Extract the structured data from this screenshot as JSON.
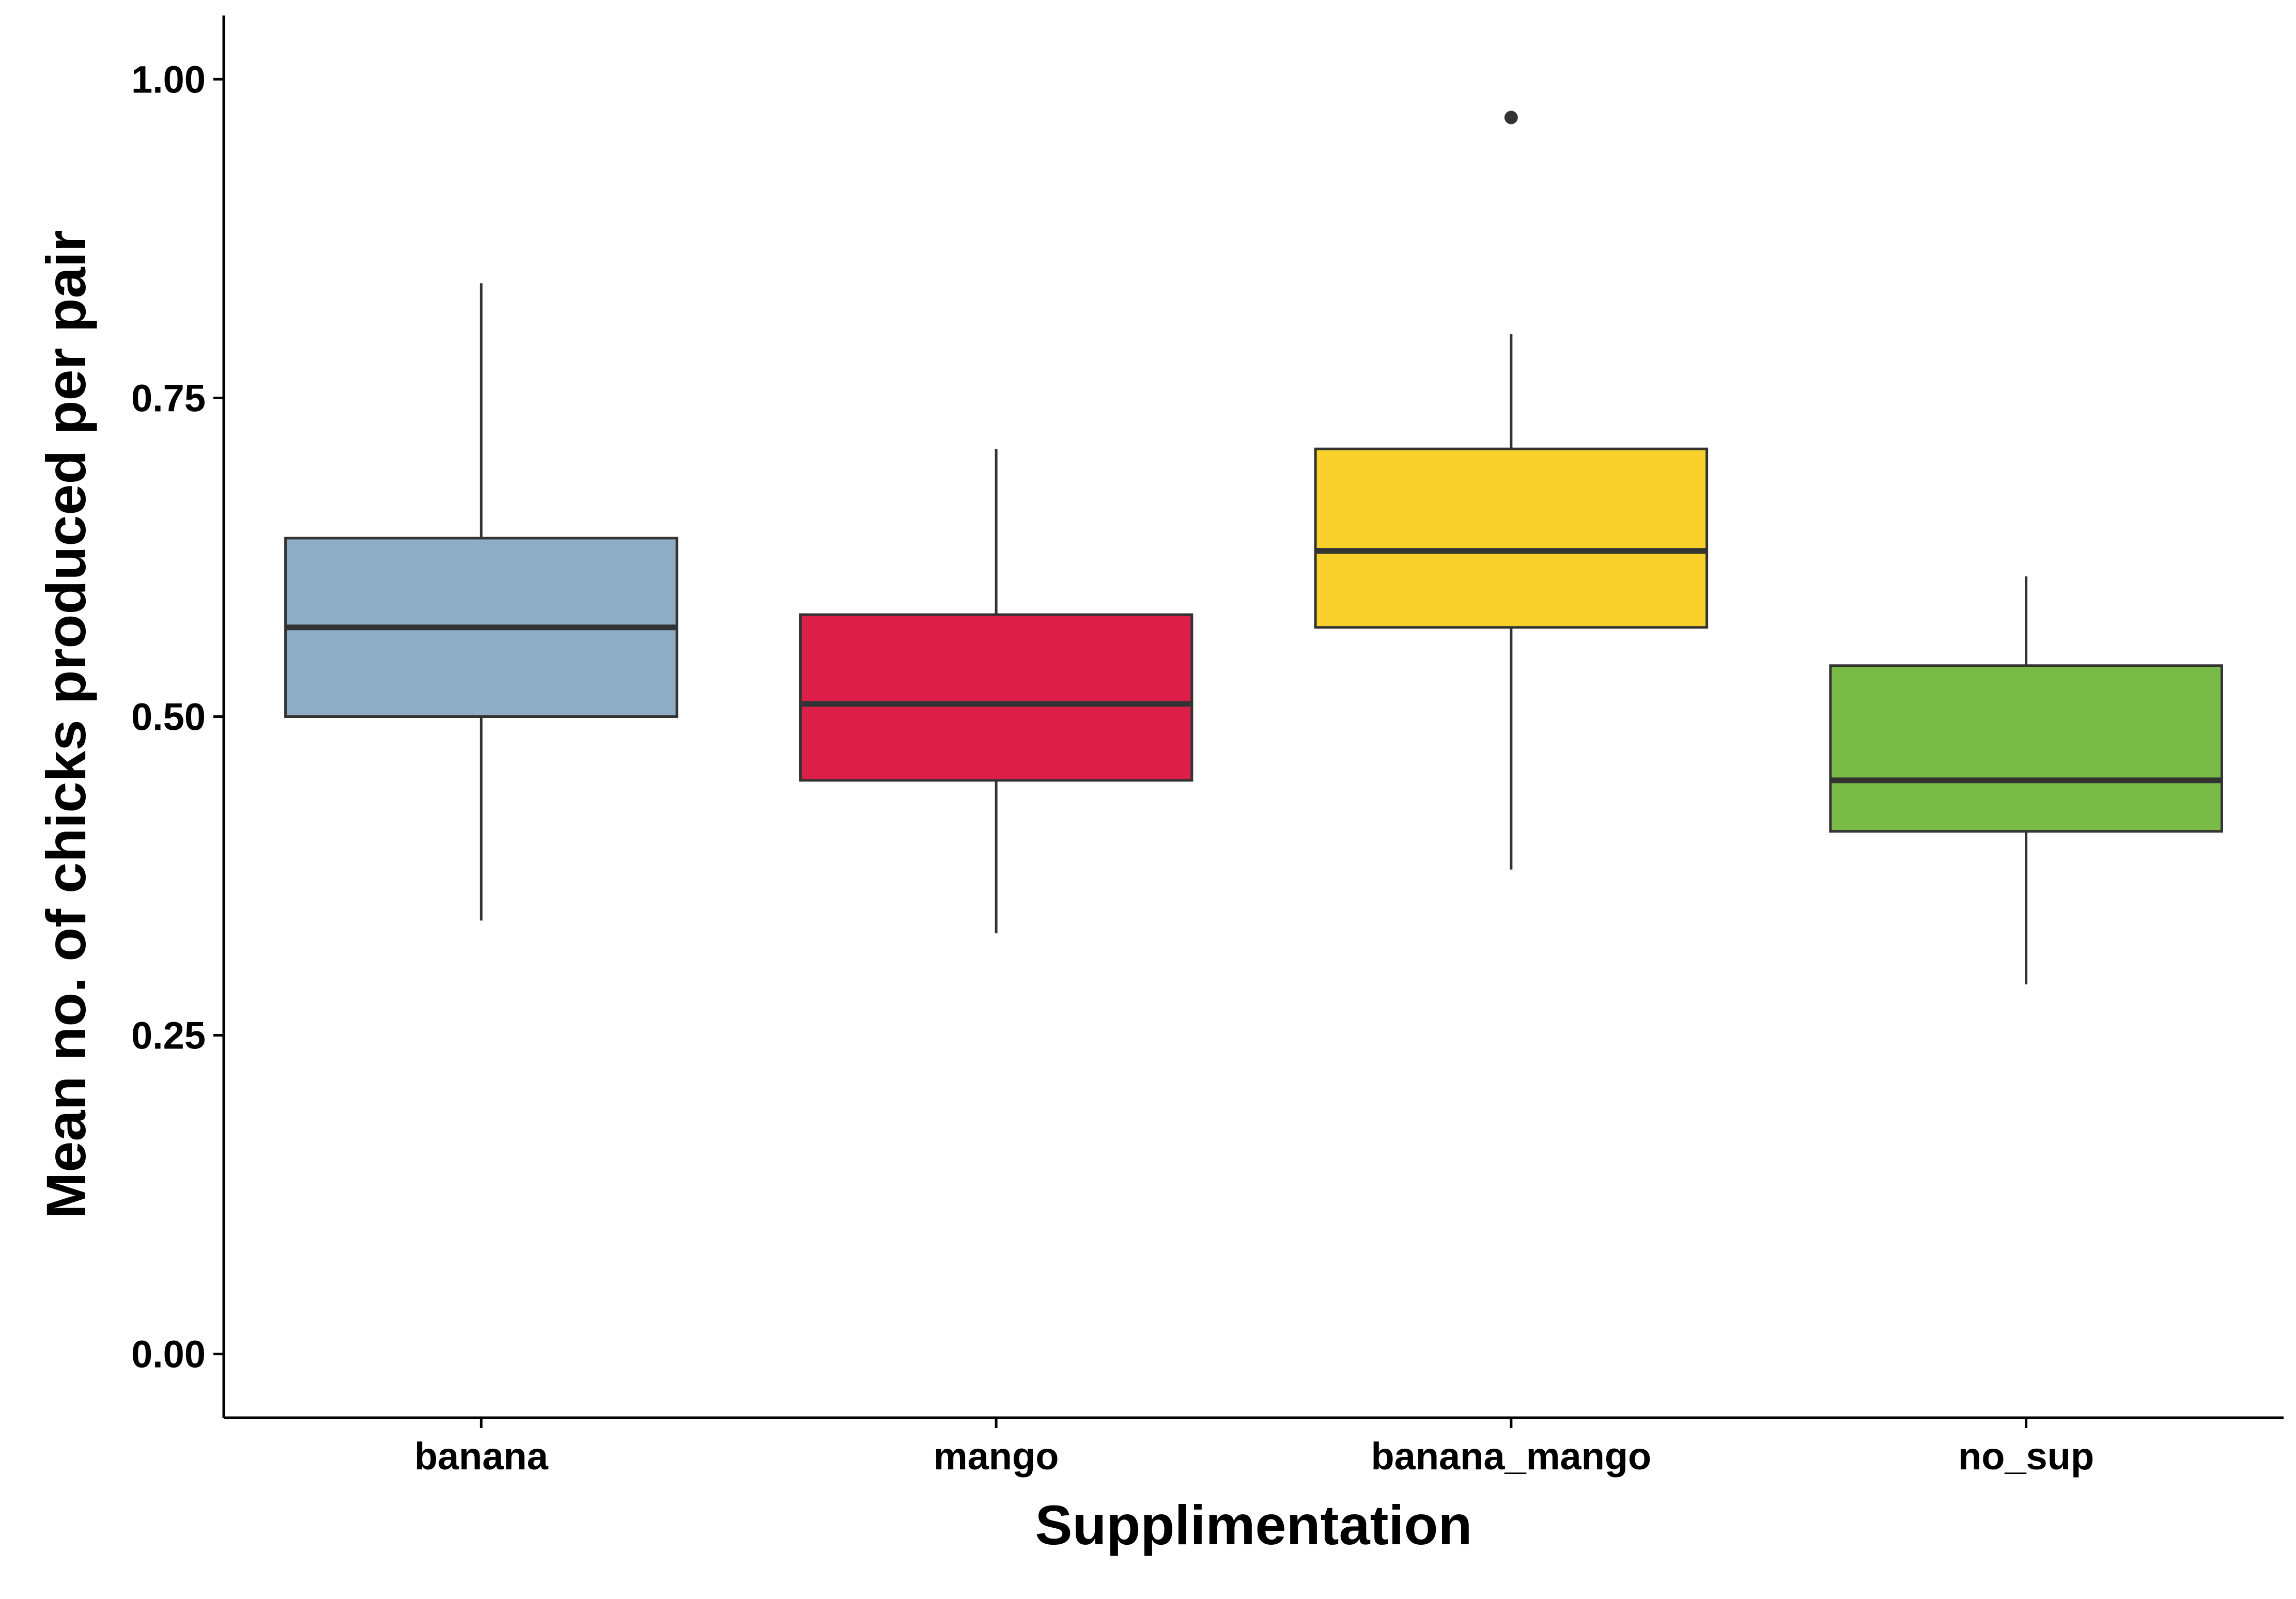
{
  "chart_data": {
    "type": "box",
    "title": "",
    "xlabel": "Supplimentation",
    "ylabel": "Mean no. of chicks produced per pair",
    "ylim": [
      -0.05,
      1.05
    ],
    "yticks": [
      {
        "value": 0.0,
        "label": "0.00"
      },
      {
        "value": 0.25,
        "label": "0.25"
      },
      {
        "value": 0.5,
        "label": "0.50"
      },
      {
        "value": 0.75,
        "label": "0.75"
      },
      {
        "value": 1.0,
        "label": "1.00"
      }
    ],
    "categories": [
      "banana",
      "mango",
      "banana_mango",
      "no_sup"
    ],
    "boxes": [
      {
        "category": "banana",
        "whisker_low": 0.34,
        "q1": 0.5,
        "median": 0.57,
        "q3": 0.64,
        "whisker_high": 0.84,
        "outliers": [],
        "color": "#8FADC5"
      },
      {
        "category": "mango",
        "whisker_low": 0.33,
        "q1": 0.45,
        "median": 0.51,
        "q3": 0.58,
        "whisker_high": 0.71,
        "outliers": [],
        "color": "#DC1F48"
      },
      {
        "category": "banana_mango",
        "whisker_low": 0.38,
        "q1": 0.57,
        "median": 0.63,
        "q3": 0.71,
        "whisker_high": 0.8,
        "outliers": [
          0.97
        ],
        "color": "#F9D12D"
      },
      {
        "category": "no_sup",
        "whisker_low": 0.29,
        "q1": 0.41,
        "median": 0.45,
        "q3": 0.54,
        "whisker_high": 0.61,
        "outliers": [],
        "color": "#7ABA46"
      }
    ],
    "grid": false,
    "legend": "none"
  }
}
